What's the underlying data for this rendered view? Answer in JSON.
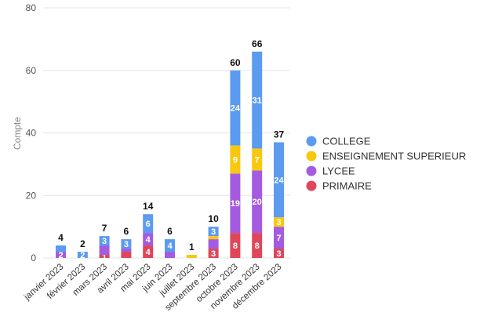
{
  "chart_data": {
    "type": "bar",
    "stacked": true,
    "ylabel": "Compte",
    "ylim": [
      0,
      80
    ],
    "yticks": [
      0,
      20,
      40,
      60,
      80
    ],
    "grid": true,
    "legend_position": "right",
    "categories": [
      "janvier 2023",
      "février 2023",
      "mars 2023",
      "avril 2023",
      "mai 2023",
      "juin 2023",
      "juillet 2023",
      "septembre 2023",
      "octobre 2023",
      "novembre 2023",
      "décembre 2023"
    ],
    "series": [
      {
        "name": "PRIMAIRE",
        "color": "#E0465A",
        "values": [
          0,
          0,
          1,
          2,
          4,
          0,
          0,
          3,
          8,
          8,
          3
        ]
      },
      {
        "name": "LYCEE",
        "color": "#A45BE0",
        "values": [
          2,
          0,
          3,
          1,
          4,
          2,
          0,
          3,
          19,
          20,
          7
        ]
      },
      {
        "name": "ENSEIGNEMENT SUPERIEUR",
        "color": "#F9C80E",
        "values": [
          0,
          0,
          0,
          0,
          0,
          0,
          1,
          1,
          9,
          7,
          3
        ]
      },
      {
        "name": "COLLEGE",
        "color": "#5B9BF0",
        "values": [
          2,
          2,
          3,
          3,
          6,
          4,
          0,
          3,
          24,
          31,
          24
        ]
      }
    ],
    "segment_labels": {
      "PRIMAIRE": [
        "",
        "",
        "1",
        "",
        "4",
        "",
        "",
        "3",
        "8",
        "8",
        "3"
      ],
      "LYCEE": [
        "2",
        "",
        "",
        "",
        "4",
        "",
        "",
        "",
        "19",
        "20",
        "7"
      ],
      "ENSEIGNEMENT SUPERIEUR": [
        "",
        "",
        "",
        "",
        "",
        "",
        "",
        "",
        "9",
        "7",
        "3"
      ],
      "COLLEGE": [
        "",
        "2",
        "3",
        "3",
        "6",
        "4",
        "",
        "3",
        "24",
        "31",
        "24"
      ]
    },
    "totals": [
      4,
      2,
      7,
      6,
      14,
      6,
      1,
      10,
      60,
      66,
      37
    ],
    "legend_order": [
      "COLLEGE",
      "ENSEIGNEMENT SUPERIEUR",
      "LYCEE",
      "PRIMAIRE"
    ]
  }
}
